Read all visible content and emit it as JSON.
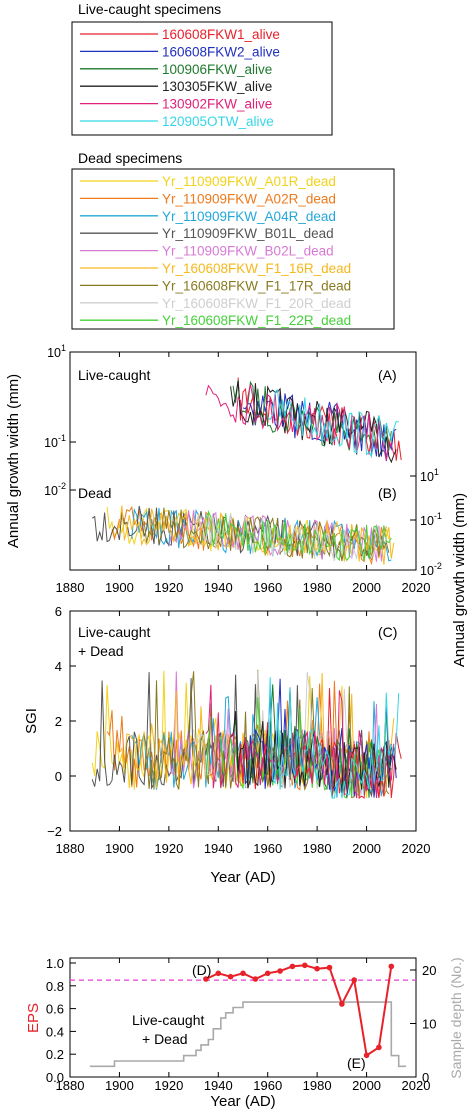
{
  "legend_live": {
    "title": "Live-caught specimens",
    "entries": [
      {
        "label": "160608FKW1_alive",
        "color": "#e8212b"
      },
      {
        "label": "160608FKW2_alive",
        "color": "#1f2fbf"
      },
      {
        "label": "100906FKW_alive",
        "color": "#1f7a2f"
      },
      {
        "label": "130305FKW_alive",
        "color": "#222222"
      },
      {
        "label": "130902FKW_alive",
        "color": "#e0217a"
      },
      {
        "label": "120905OTW_alive",
        "color": "#35d6e8"
      }
    ]
  },
  "legend_dead": {
    "title": "Dead specimens",
    "entries": [
      {
        "label": "Yr_110909FKW_A01R_dead",
        "color": "#f2d21a"
      },
      {
        "label": "Yr_110909FKW_A02R_dead",
        "color": "#ee7a1c"
      },
      {
        "label": "Yr_110909FKW_A04R_dead",
        "color": "#23a8d9"
      },
      {
        "label": "Yr_110909FKW_B01L_dead",
        "color": "#555555"
      },
      {
        "label": "Yr_110909FKW_B02L_dead",
        "color": "#d77ad6"
      },
      {
        "label": "Yr_160608FKW_F1_16R_dead",
        "color": "#f6b81c"
      },
      {
        "label": "Yr_160608FKW_F1_17R_dead",
        "color": "#8a7a1f"
      },
      {
        "label": "Yr_160608FKW_F1_20R_dead",
        "color": "#cfcfcf"
      },
      {
        "label": "Yr_160608FKW_F1_22R_dead",
        "color": "#46d13a"
      }
    ]
  },
  "chart_data": [
    {
      "type": "line",
      "panels": [
        "(A)",
        "(B)"
      ],
      "panel_A_label": "Live-caught",
      "panel_B_label": "Dead",
      "ylabel_left": "Annual growth width (mm)",
      "ylabel_right": "Annual growth width (mm)",
      "y_scale": "log",
      "xlim": [
        1880,
        2020
      ],
      "x_ticks": [
        "1880",
        "1900",
        "1920",
        "1940",
        "1960",
        "1980",
        "2000",
        "2020"
      ],
      "y_ticks_left": [
        "10^-2",
        "10^-1",
        "10^1"
      ],
      "y_ticks_right": [
        "10^-2",
        "10^-1",
        "10^1"
      ],
      "live_series_range": [
        1935,
        2014
      ],
      "live_value_range_mm": [
        0.02,
        7
      ],
      "dead_series_range": [
        1889,
        2011
      ],
      "dead_value_range_mm": [
        0.012,
        0.25
      ]
    },
    {
      "type": "line",
      "panel": "(C)",
      "label_line1": "Live-caught",
      "label_line2": "+ Dead",
      "ylabel": "SGI",
      "xlabel": "Year (AD)",
      "xlim": [
        1880,
        2020
      ],
      "ylim": [
        -2,
        6
      ],
      "x_ticks": [
        "1880",
        "1900",
        "1920",
        "1940",
        "1960",
        "1980",
        "2000",
        "2020"
      ],
      "y_ticks": [
        "−2",
        "0",
        "2",
        "4",
        "6"
      ]
    },
    {
      "type": "line",
      "panels": [
        "(D)",
        "(E)"
      ],
      "label_line1": "Live-caught",
      "label_line2": "+ Dead",
      "ylabel_left": "EPS",
      "ylabel_right": "Sample depth (No.)",
      "xlabel": "Year (AD)",
      "xlim": [
        1880,
        2020
      ],
      "ylim_left": [
        0,
        1
      ],
      "ylim_right": [
        0,
        20
      ],
      "x_ticks": [
        "1880",
        "1900",
        "1920",
        "1940",
        "1960",
        "1980",
        "2000",
        "2020"
      ],
      "y_ticks_left": [
        "0.0",
        "0.2",
        "0.4",
        "0.6",
        "0.8",
        "1.0"
      ],
      "y_ticks_right": [
        "0",
        "10",
        "20"
      ],
      "eps_threshold": 0.85,
      "eps_x": [
        1935,
        1940,
        1945,
        1950,
        1955,
        1960,
        1965,
        1970,
        1975,
        1980,
        1985,
        1990,
        1995,
        2000,
        2005,
        2010
      ],
      "eps_y": [
        0.86,
        0.91,
        0.88,
        0.91,
        0.86,
        0.91,
        0.93,
        0.97,
        0.98,
        0.95,
        0.96,
        0.64,
        0.85,
        0.19,
        0.26,
        0.97
      ],
      "depth_x": [
        1888,
        1898,
        1898,
        1926,
        1926,
        1931,
        1931,
        1933,
        1933,
        1936,
        1936,
        1938,
        1938,
        1941,
        1941,
        1943,
        1943,
        1946,
        1946,
        1950,
        1950,
        2010,
        2010,
        2013,
        2013,
        2016
      ],
      "depth_y": [
        2,
        2,
        3,
        3,
        4,
        4,
        5,
        5,
        6,
        6,
        7,
        7,
        9,
        9,
        11,
        11,
        12,
        12,
        13,
        13,
        14,
        14,
        4,
        4,
        2,
        2
      ]
    }
  ]
}
